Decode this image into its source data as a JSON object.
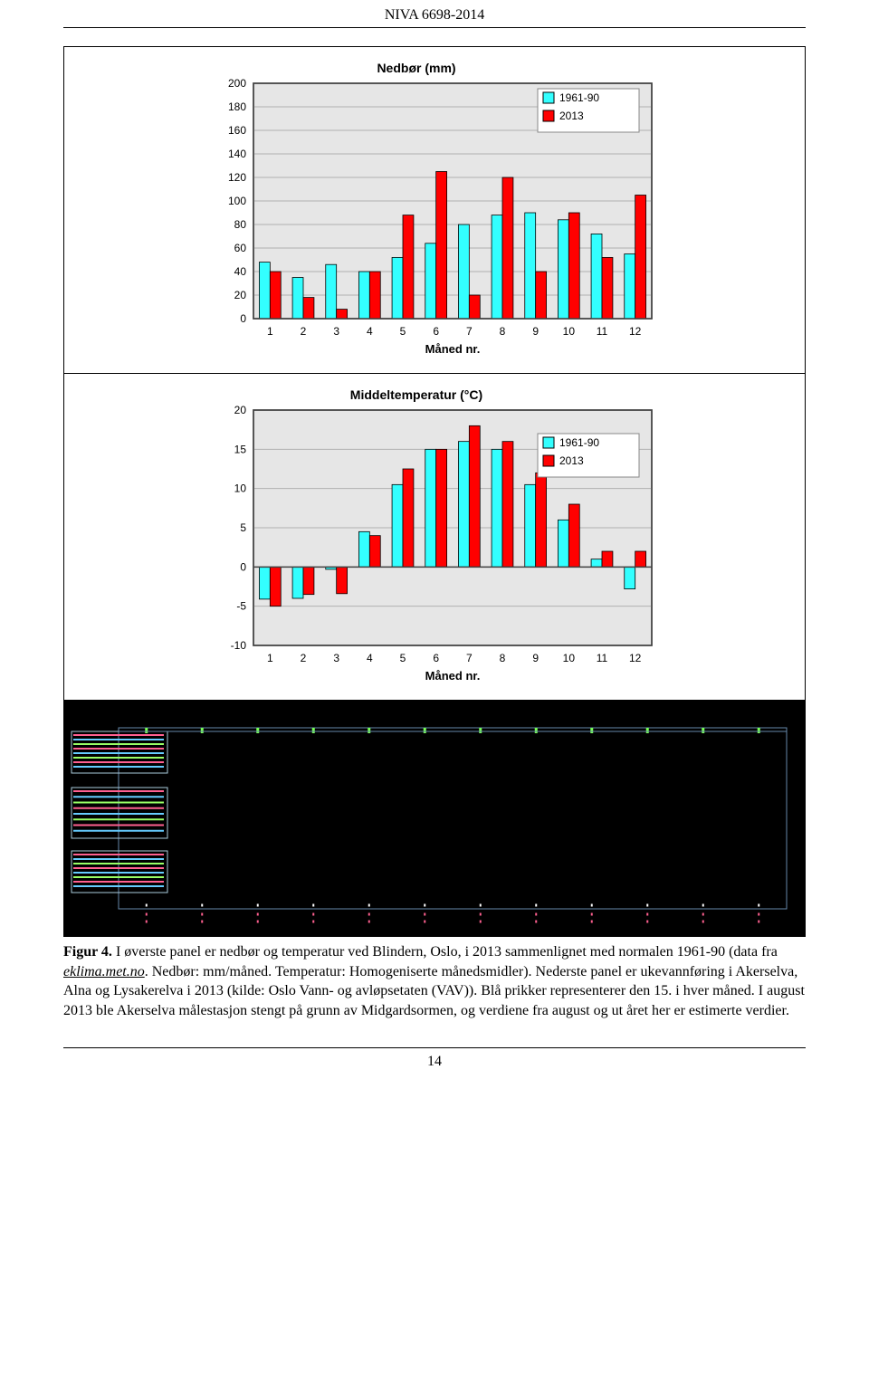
{
  "header": {
    "doc_id": "NIVA 6698-2014"
  },
  "nedbor_chart": {
    "type": "bar",
    "title": "Nedbør (mm)",
    "title_fontsize": 14,
    "xlabel": "Måned nr.",
    "categories": [
      1,
      2,
      3,
      4,
      5,
      6,
      7,
      8,
      9,
      10,
      11,
      12
    ],
    "series": [
      {
        "name": "1961-90",
        "color": "#33ffff",
        "values": [
          48,
          35,
          46,
          40,
          52,
          64,
          80,
          88,
          90,
          84,
          72,
          55
        ]
      },
      {
        "name": "2013",
        "color": "#ff0000",
        "values": [
          40,
          18,
          8,
          40,
          88,
          125,
          20,
          120,
          40,
          90,
          52,
          105
        ]
      }
    ],
    "ylim": [
      0,
      200
    ],
    "ytick_step": 20,
    "plot_bg": "#e6e6e6",
    "grid_color": "#b0b0b0",
    "axis_fontsize": 12,
    "tick_fontsize": 12,
    "bar_group_width": 0.65,
    "border_color": "#404040"
  },
  "temp_chart": {
    "type": "bar",
    "title": "Middeltemperatur (°C)",
    "title_fontsize": 14,
    "xlabel": "Måned nr.",
    "categories": [
      1,
      2,
      3,
      4,
      5,
      6,
      7,
      8,
      9,
      10,
      11,
      12
    ],
    "series": [
      {
        "name": "1961-90",
        "color": "#33ffff",
        "values": [
          -4.1,
          -4.0,
          -0.3,
          4.5,
          10.5,
          15.0,
          16.0,
          15.0,
          10.5,
          6.0,
          1.0,
          -2.8
        ]
      },
      {
        "name": "2013",
        "color": "#ff0000",
        "values": [
          -5.0,
          -3.5,
          -3.4,
          4.0,
          12.5,
          15.0,
          18.0,
          16.0,
          12.0,
          8.0,
          2.0,
          2.0
        ]
      }
    ],
    "ylim": [
      -10,
      20
    ],
    "ytick_step": 5,
    "plot_bg": "#e6e6e6",
    "grid_color": "#b0b0b0",
    "axis_fontsize": 12,
    "tick_fontsize": 12,
    "bar_group_width": 0.65,
    "border_color": "#404040"
  },
  "flow_chart": {
    "type": "line",
    "background": "#000000",
    "region_border": "#6688aa",
    "tick_color": "#ffffff",
    "line_colors": [
      "#ff6090",
      "#66ccff",
      "#99ff66"
    ],
    "n_ticks": 12
  },
  "caption": {
    "figlabel": "Figur 4.",
    "text_1": " I øverste panel er nedbør og temperatur ved Blindern, Oslo, i 2013 sammenlignet med normalen 1961-90 (data fra ",
    "link_text": "eklima.met.no",
    "text_2": ". Nedbør: mm/måned. Temperatur: Homogeniserte månedsmidler). Nederste panel er ukevannføring i Akerselva, Alna og Lysakerelva i 2013 (kilde: Oslo Vann- og avløpsetaten (VAV)). Blå prikker representerer den 15. i hver måned. I august 2013 ble Akerselva målestasjon stengt på grunn av Midgardsormen, og verdiene fra august og ut året her er estimerte verdier."
  },
  "footer": {
    "page": "14"
  }
}
